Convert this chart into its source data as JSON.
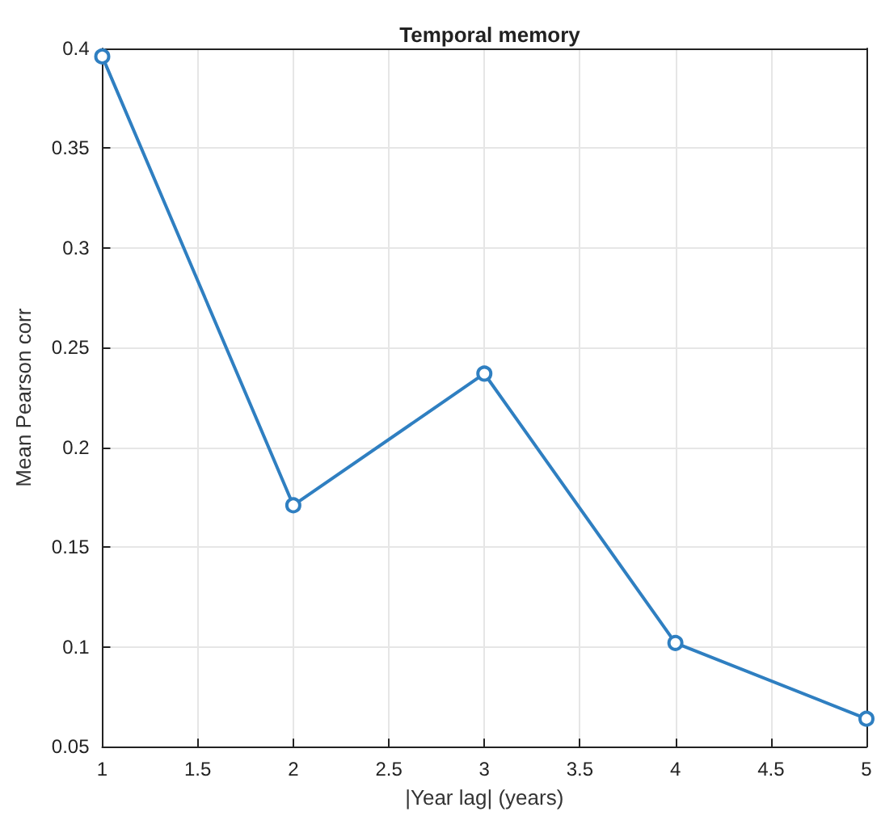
{
  "chart_data": {
    "type": "line",
    "title": "Temporal memory",
    "xlabel": "|Year lag| (years)",
    "ylabel": "Mean Pearson corr",
    "x": [
      1,
      2,
      3,
      4,
      5
    ],
    "series": [
      {
        "color": "#2f7fc1",
        "values": [
          0.396,
          0.171,
          0.237,
          0.102,
          0.064
        ]
      }
    ],
    "xlim": [
      1,
      5
    ],
    "xticks": [
      1,
      1.5,
      2,
      2.5,
      3,
      3.5,
      4,
      4.5,
      5
    ],
    "ylim": [
      0.05,
      0.4
    ],
    "yticks": [
      0.05,
      0.1,
      0.15,
      0.2,
      0.25,
      0.3,
      0.35,
      0.4
    ],
    "grid": true,
    "marker": "circle",
    "line_style": "solid"
  }
}
